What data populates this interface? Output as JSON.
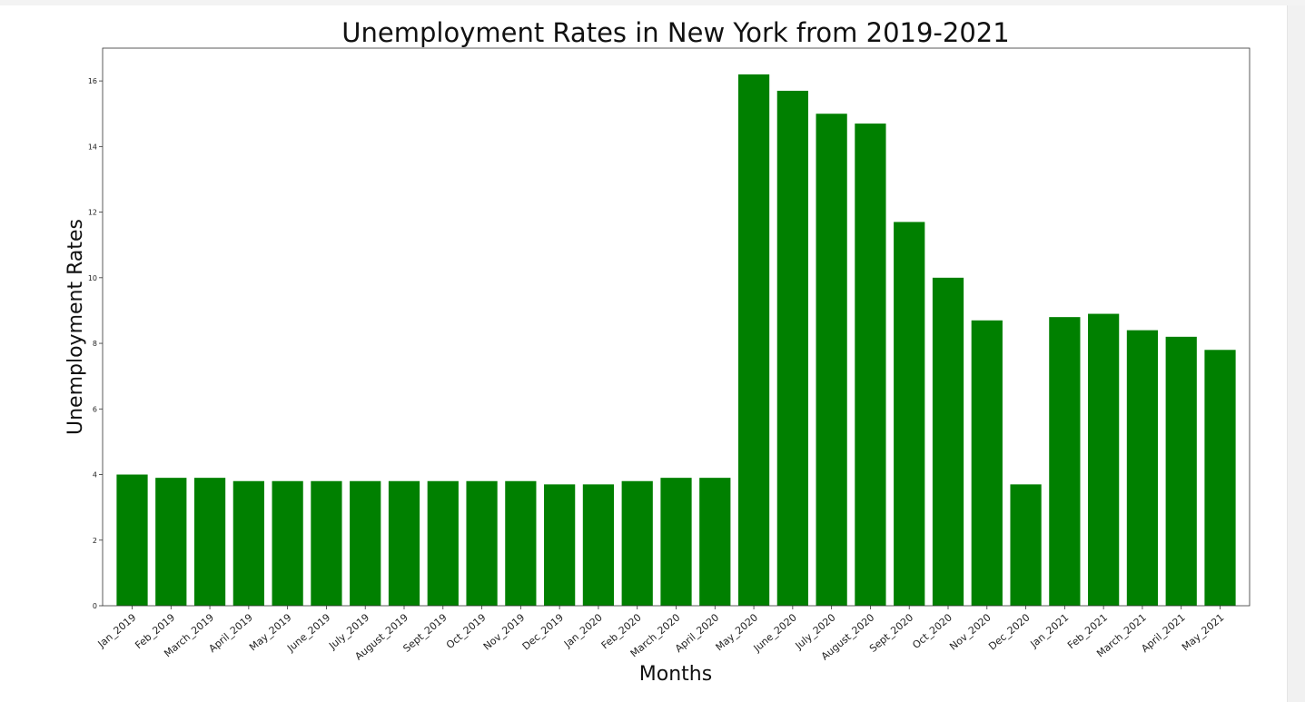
{
  "chart_data": {
    "type": "bar",
    "title": "Unemployment Rates in New York from 2019-2021",
    "xlabel": "Months",
    "ylabel": "Unemployment Rates",
    "ylim": [
      0,
      17
    ],
    "yticks": [
      0,
      2,
      4,
      6,
      8,
      10,
      12,
      14,
      16
    ],
    "grid": false,
    "bar_color": "#008000",
    "categories": [
      "Jan_2019",
      "Feb_2019",
      "March_2019",
      "April_2019",
      "May_2019",
      "June_2019",
      "July_2019",
      "August_2019",
      "Sept_2019",
      "Oct_2019",
      "Nov_2019",
      "Dec_2019",
      "Jan_2020",
      "Feb_2020",
      "March_2020",
      "April_2020",
      "May_2020",
      "June_2020",
      "July_2020",
      "August_2020",
      "Sept_2020",
      "Oct_2020",
      "Nov_2020",
      "Dec_2020",
      "Jan_2021",
      "Feb_2021",
      "March_2021",
      "April_2021",
      "May_2021"
    ],
    "values": [
      4.0,
      3.9,
      3.9,
      3.8,
      3.8,
      3.8,
      3.8,
      3.8,
      3.8,
      3.8,
      3.8,
      3.7,
      3.7,
      3.8,
      3.9,
      3.9,
      16.2,
      15.7,
      15.0,
      14.7,
      11.7,
      10.0,
      8.7,
      3.7,
      8.8,
      8.9,
      8.4,
      8.2,
      7.8
    ]
  }
}
